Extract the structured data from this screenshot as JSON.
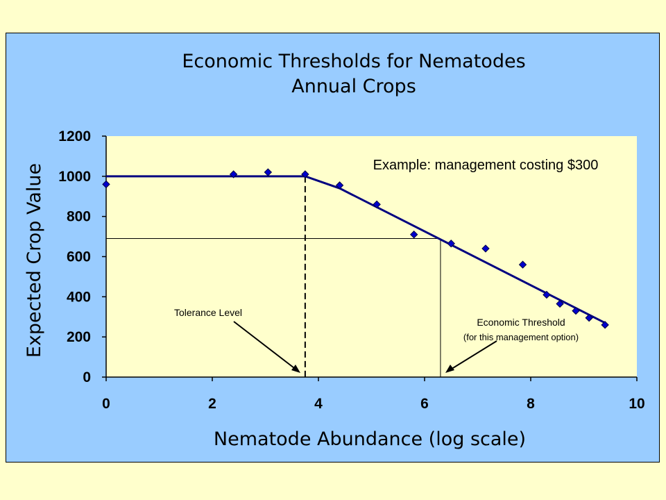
{
  "chart_data": {
    "type": "scatter",
    "title": "Economic Thresholds for Nematodes",
    "subtitle": "Annual Crops",
    "xlabel": "Nematode Abundance (log scale)",
    "ylabel": "Expected Crop Value",
    "xlim": [
      0,
      10
    ],
    "ylim": [
      0,
      1200
    ],
    "x_ticks": [
      0,
      2,
      4,
      6,
      8,
      10
    ],
    "y_ticks": [
      0,
      200,
      400,
      600,
      800,
      1000,
      1200
    ],
    "grid": false,
    "colors": {
      "outer_background": "#ffffcc",
      "frame_background": "#99ccff",
      "plot_background": "#ffffcc",
      "series": "#000080",
      "markers": "#0000cc"
    },
    "points": [
      {
        "x": 0.0,
        "y": 960
      },
      {
        "x": 2.4,
        "y": 1010
      },
      {
        "x": 3.05,
        "y": 1020
      },
      {
        "x": 3.75,
        "y": 1010
      },
      {
        "x": 4.4,
        "y": 955
      },
      {
        "x": 5.1,
        "y": 860
      },
      {
        "x": 5.8,
        "y": 710
      },
      {
        "x": 6.5,
        "y": 665
      },
      {
        "x": 7.15,
        "y": 640
      },
      {
        "x": 7.85,
        "y": 560
      },
      {
        "x": 8.3,
        "y": 410
      },
      {
        "x": 8.55,
        "y": 365
      },
      {
        "x": 8.85,
        "y": 330
      },
      {
        "x": 9.1,
        "y": 295
      },
      {
        "x": 9.4,
        "y": 260
      }
    ],
    "fit_line": [
      {
        "x": 0.0,
        "y": 1000
      },
      {
        "x": 3.75,
        "y": 1000
      },
      {
        "x": 4.4,
        "y": 940
      },
      {
        "x": 9.4,
        "y": 270
      }
    ],
    "reference_lines": {
      "tolerance_x": 3.75,
      "threshold_x": 6.3,
      "threshold_y": 690
    },
    "annotations": {
      "example": "Example: management costing $300",
      "tolerance": "Tolerance Level",
      "threshold": "Economic Threshold",
      "threshold_note": "(for this management option)"
    }
  }
}
